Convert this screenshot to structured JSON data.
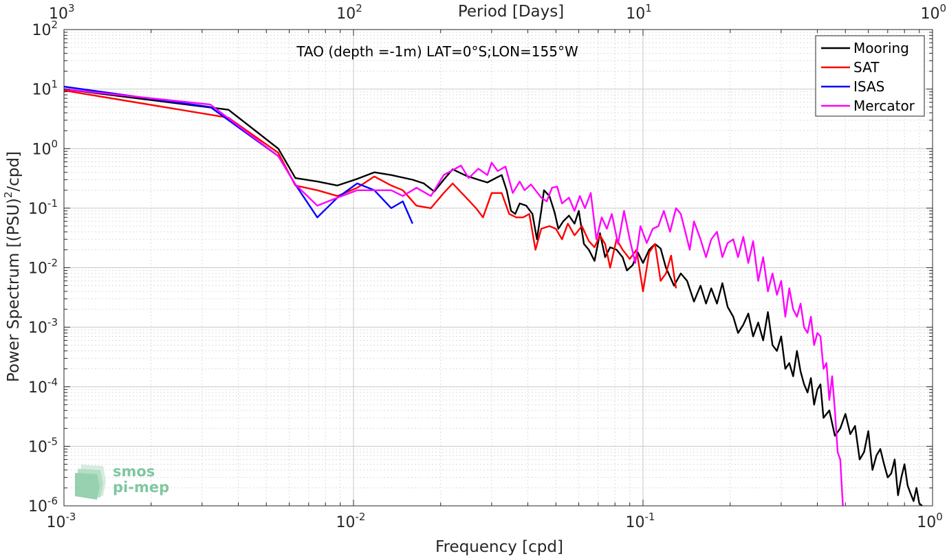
{
  "chart_data": {
    "type": "line",
    "title": "TAO (depth =-1m) LAT=0°S;LON=155°W",
    "xlabel": "Frequency [cpd]",
    "ylabel_base": "Power Spectrum [(PSU)",
    "ylabel_sup": "2",
    "ylabel_tail": "/cpd]",
    "top_axis_label": "Period [Days]",
    "x_scale": "log",
    "y_scale": "log",
    "xlim": [
      0.001,
      1
    ],
    "ylim": [
      1e-06,
      100
    ],
    "grid": true,
    "legend_position": "top-right",
    "x_ticks": [
      {
        "base": "10",
        "exp": "-3"
      },
      {
        "base": "10",
        "exp": "-2"
      },
      {
        "base": "10",
        "exp": "-1"
      },
      {
        "base": "10",
        "exp": "0"
      }
    ],
    "y_ticks": [
      {
        "base": "10",
        "exp": "-6"
      },
      {
        "base": "10",
        "exp": "-5"
      },
      {
        "base": "10",
        "exp": "-4"
      },
      {
        "base": "10",
        "exp": "-3"
      },
      {
        "base": "10",
        "exp": "-2"
      },
      {
        "base": "10",
        "exp": "-1"
      },
      {
        "base": "10",
        "exp": "0"
      },
      {
        "base": "10",
        "exp": "1"
      },
      {
        "base": "10",
        "exp": "2"
      }
    ],
    "top_ticks": [
      {
        "base": "10",
        "exp": "3"
      },
      {
        "base": "10",
        "exp": "2"
      },
      {
        "base": "10",
        "exp": "1"
      },
      {
        "base": "10",
        "exp": "0"
      }
    ],
    "series": [
      {
        "name": "Mooring",
        "color": "#000000",
        "points": [
          [
            0.001,
            10
          ],
          [
            0.0037,
            4.5
          ],
          [
            0.0055,
            1.0
          ],
          [
            0.0063,
            0.32
          ],
          [
            0.0075,
            0.28
          ],
          [
            0.0088,
            0.24
          ],
          [
            0.0103,
            0.31
          ],
          [
            0.0118,
            0.4
          ],
          [
            0.0135,
            0.36
          ],
          [
            0.016,
            0.3
          ],
          [
            0.0175,
            0.26
          ],
          [
            0.019,
            0.19
          ],
          [
            0.0205,
            0.3
          ],
          [
            0.022,
            0.45
          ],
          [
            0.0245,
            0.35
          ],
          [
            0.027,
            0.3
          ],
          [
            0.029,
            0.27
          ],
          [
            0.031,
            0.32
          ],
          [
            0.0325,
            0.36
          ],
          [
            0.0338,
            0.2
          ],
          [
            0.035,
            0.09
          ],
          [
            0.0362,
            0.08
          ],
          [
            0.0375,
            0.12
          ],
          [
            0.0395,
            0.11
          ],
          [
            0.0415,
            0.08
          ],
          [
            0.043,
            0.03
          ],
          [
            0.0445,
            0.09
          ],
          [
            0.0455,
            0.2
          ],
          [
            0.0475,
            0.16
          ],
          [
            0.0495,
            0.085
          ],
          [
            0.051,
            0.045
          ],
          [
            0.053,
            0.06
          ],
          [
            0.0555,
            0.075
          ],
          [
            0.058,
            0.055
          ],
          [
            0.06,
            0.09
          ],
          [
            0.0625,
            0.025
          ],
          [
            0.065,
            0.02
          ],
          [
            0.068,
            0.013
          ],
          [
            0.071,
            0.038
          ],
          [
            0.074,
            0.015
          ],
          [
            0.077,
            0.022
          ],
          [
            0.081,
            0.02
          ],
          [
            0.085,
            0.015
          ],
          [
            0.088,
            0.009
          ],
          [
            0.092,
            0.011
          ],
          [
            0.096,
            0.018
          ],
          [
            0.1,
            0.012
          ],
          [
            0.105,
            0.02
          ],
          [
            0.11,
            0.025
          ],
          [
            0.115,
            0.021
          ],
          [
            0.12,
            0.01
          ],
          [
            0.128,
            0.005
          ],
          [
            0.135,
            0.008
          ],
          [
            0.142,
            0.006
          ],
          [
            0.15,
            0.0027
          ],
          [
            0.158,
            0.005
          ],
          [
            0.165,
            0.0025
          ],
          [
            0.172,
            0.0045
          ],
          [
            0.18,
            0.0025
          ],
          [
            0.188,
            0.0055
          ],
          [
            0.196,
            0.0022
          ],
          [
            0.205,
            0.0015
          ],
          [
            0.213,
            0.0008
          ],
          [
            0.222,
            0.0011
          ],
          [
            0.231,
            0.0017
          ],
          [
            0.24,
            0.0007
          ],
          [
            0.25,
            0.0012
          ],
          [
            0.26,
            0.0006
          ],
          [
            0.27,
            0.0018
          ],
          [
            0.28,
            0.0005
          ],
          [
            0.29,
            0.0004
          ],
          [
            0.3,
            0.0007
          ],
          [
            0.31,
            0.0002
          ],
          [
            0.32,
            0.00025
          ],
          [
            0.33,
            0.00015
          ],
          [
            0.34,
            0.0004
          ],
          [
            0.35,
            0.00018
          ],
          [
            0.36,
            0.00011
          ],
          [
            0.37,
            8e-05
          ],
          [
            0.38,
            0.00014
          ],
          [
            0.39,
            5e-05
          ],
          [
            0.4,
            9e-05
          ],
          [
            0.41,
            0.00011
          ],
          [
            0.42,
            3e-05
          ],
          [
            0.44,
            4e-05
          ],
          [
            0.46,
            1.5e-05
          ],
          [
            0.48,
            2e-05
          ],
          [
            0.5,
            3.5e-05
          ],
          [
            0.52,
            1.6e-05
          ],
          [
            0.54,
            2.2e-05
          ],
          [
            0.56,
            6e-06
          ],
          [
            0.58,
            8e-06
          ],
          [
            0.6,
            1.8e-05
          ],
          [
            0.62,
            4e-06
          ],
          [
            0.64,
            7e-06
          ],
          [
            0.66,
            9e-06
          ],
          [
            0.68,
            5e-06
          ],
          [
            0.7,
            3e-06
          ],
          [
            0.72,
            3.5e-06
          ],
          [
            0.74,
            6e-06
          ],
          [
            0.76,
            1.5e-06
          ],
          [
            0.78,
            3e-06
          ],
          [
            0.8,
            5e-06
          ],
          [
            0.82,
            2.2e-06
          ],
          [
            0.84,
            1.6e-06
          ],
          [
            0.86,
            1.2e-06
          ],
          [
            0.88,
            2e-06
          ],
          [
            0.9,
            1.1e-06
          ],
          [
            0.92,
            1e-06
          ]
        ]
      },
      {
        "name": "SAT",
        "color": "#ff0000",
        "points": [
          [
            0.001,
            9.5
          ],
          [
            0.0037,
            3.3
          ],
          [
            0.0055,
            0.85
          ],
          [
            0.0063,
            0.24
          ],
          [
            0.0075,
            0.2
          ],
          [
            0.0088,
            0.16
          ],
          [
            0.0103,
            0.22
          ],
          [
            0.0118,
            0.34
          ],
          [
            0.0135,
            0.24
          ],
          [
            0.0148,
            0.2
          ],
          [
            0.0165,
            0.11
          ],
          [
            0.0185,
            0.1
          ],
          [
            0.0205,
            0.18
          ],
          [
            0.022,
            0.26
          ],
          [
            0.0245,
            0.15
          ],
          [
            0.0265,
            0.1
          ],
          [
            0.028,
            0.07
          ],
          [
            0.03,
            0.18
          ],
          [
            0.0325,
            0.18
          ],
          [
            0.0345,
            0.08
          ],
          [
            0.0365,
            0.07
          ],
          [
            0.0385,
            0.07
          ],
          [
            0.0405,
            0.08
          ],
          [
            0.0425,
            0.02
          ],
          [
            0.0445,
            0.045
          ],
          [
            0.0475,
            0.05
          ],
          [
            0.05,
            0.045
          ],
          [
            0.0525,
            0.03
          ],
          [
            0.055,
            0.055
          ],
          [
            0.058,
            0.035
          ],
          [
            0.0615,
            0.05
          ],
          [
            0.065,
            0.028
          ],
          [
            0.068,
            0.022
          ],
          [
            0.071,
            0.035
          ],
          [
            0.074,
            0.025
          ],
          [
            0.077,
            0.01
          ],
          [
            0.081,
            0.03
          ],
          [
            0.085,
            0.02
          ],
          [
            0.09,
            0.014
          ],
          [
            0.095,
            0.02
          ],
          [
            0.1,
            0.004
          ],
          [
            0.105,
            0.018
          ],
          [
            0.11,
            0.025
          ],
          [
            0.115,
            0.006
          ],
          [
            0.12,
            0.008
          ],
          [
            0.125,
            0.016
          ],
          [
            0.13,
            0.0045
          ]
        ]
      },
      {
        "name": "ISAS",
        "color": "#0000ff",
        "points": [
          [
            0.001,
            11
          ],
          [
            0.0032,
            5
          ],
          [
            0.0055,
            0.75
          ],
          [
            0.0063,
            0.25
          ],
          [
            0.0075,
            0.07
          ],
          [
            0.0088,
            0.15
          ],
          [
            0.0103,
            0.26
          ],
          [
            0.0118,
            0.2
          ],
          [
            0.0135,
            0.1
          ],
          [
            0.0148,
            0.13
          ],
          [
            0.016,
            0.055
          ]
        ]
      },
      {
        "name": "Mercator",
        "color": "#ff00ff",
        "points": [
          [
            0.001,
            10
          ],
          [
            0.0032,
            5.5
          ],
          [
            0.0055,
            0.75
          ],
          [
            0.0063,
            0.25
          ],
          [
            0.0075,
            0.11
          ],
          [
            0.0088,
            0.15
          ],
          [
            0.0103,
            0.2
          ],
          [
            0.0118,
            0.2
          ],
          [
            0.0135,
            0.2
          ],
          [
            0.0148,
            0.16
          ],
          [
            0.0165,
            0.22
          ],
          [
            0.0185,
            0.16
          ],
          [
            0.0205,
            0.36
          ],
          [
            0.0235,
            0.52
          ],
          [
            0.025,
            0.32
          ],
          [
            0.027,
            0.46
          ],
          [
            0.029,
            0.36
          ],
          [
            0.03,
            0.58
          ],
          [
            0.0315,
            0.42
          ],
          [
            0.0335,
            0.5
          ],
          [
            0.0355,
            0.18
          ],
          [
            0.0375,
            0.28
          ],
          [
            0.039,
            0.2
          ],
          [
            0.041,
            0.25
          ],
          [
            0.0425,
            0.2
          ],
          [
            0.0445,
            0.15
          ],
          [
            0.0465,
            0.13
          ],
          [
            0.0485,
            0.22
          ],
          [
            0.0505,
            0.23
          ],
          [
            0.0525,
            0.12
          ],
          [
            0.0555,
            0.15
          ],
          [
            0.058,
            0.09
          ],
          [
            0.0605,
            0.16
          ],
          [
            0.063,
            0.1
          ],
          [
            0.066,
            0.18
          ],
          [
            0.069,
            0.03
          ],
          [
            0.072,
            0.07
          ],
          [
            0.075,
            0.045
          ],
          [
            0.078,
            0.08
          ],
          [
            0.082,
            0.025
          ],
          [
            0.086,
            0.09
          ],
          [
            0.09,
            0.03
          ],
          [
            0.094,
            0.012
          ],
          [
            0.098,
            0.05
          ],
          [
            0.103,
            0.026
          ],
          [
            0.108,
            0.045
          ],
          [
            0.113,
            0.05
          ],
          [
            0.118,
            0.09
          ],
          [
            0.124,
            0.04
          ],
          [
            0.13,
            0.1
          ],
          [
            0.135,
            0.08
          ],
          [
            0.14,
            0.04
          ],
          [
            0.145,
            0.02
          ],
          [
            0.15,
            0.06
          ],
          [
            0.158,
            0.03
          ],
          [
            0.165,
            0.015
          ],
          [
            0.172,
            0.03
          ],
          [
            0.18,
            0.04
          ],
          [
            0.188,
            0.015
          ],
          [
            0.196,
            0.026
          ],
          [
            0.205,
            0.03
          ],
          [
            0.213,
            0.015
          ],
          [
            0.222,
            0.033
          ],
          [
            0.231,
            0.012
          ],
          [
            0.24,
            0.028
          ],
          [
            0.25,
            0.006
          ],
          [
            0.26,
            0.015
          ],
          [
            0.27,
            0.004
          ],
          [
            0.28,
            0.008
          ],
          [
            0.29,
            0.0035
          ],
          [
            0.3,
            0.006
          ],
          [
            0.31,
            0.0015
          ],
          [
            0.32,
            0.0045
          ],
          [
            0.33,
            0.002
          ],
          [
            0.34,
            0.0015
          ],
          [
            0.35,
            0.0025
          ],
          [
            0.36,
            0.001
          ],
          [
            0.37,
            0.0008
          ],
          [
            0.38,
            0.0015
          ],
          [
            0.39,
            0.0005
          ],
          [
            0.4,
            0.0008
          ],
          [
            0.41,
            0.0007
          ],
          [
            0.42,
            0.0002
          ],
          [
            0.43,
            0.00025
          ],
          [
            0.44,
            6e-05
          ],
          [
            0.45,
            0.00015
          ],
          [
            0.46,
            4e-05
          ],
          [
            0.47,
            8e-06
          ],
          [
            0.48,
            6e-06
          ],
          [
            0.49,
            1e-06
          ]
        ]
      }
    ]
  },
  "logo": {
    "line1": "smos",
    "line2": "pi-mep"
  }
}
